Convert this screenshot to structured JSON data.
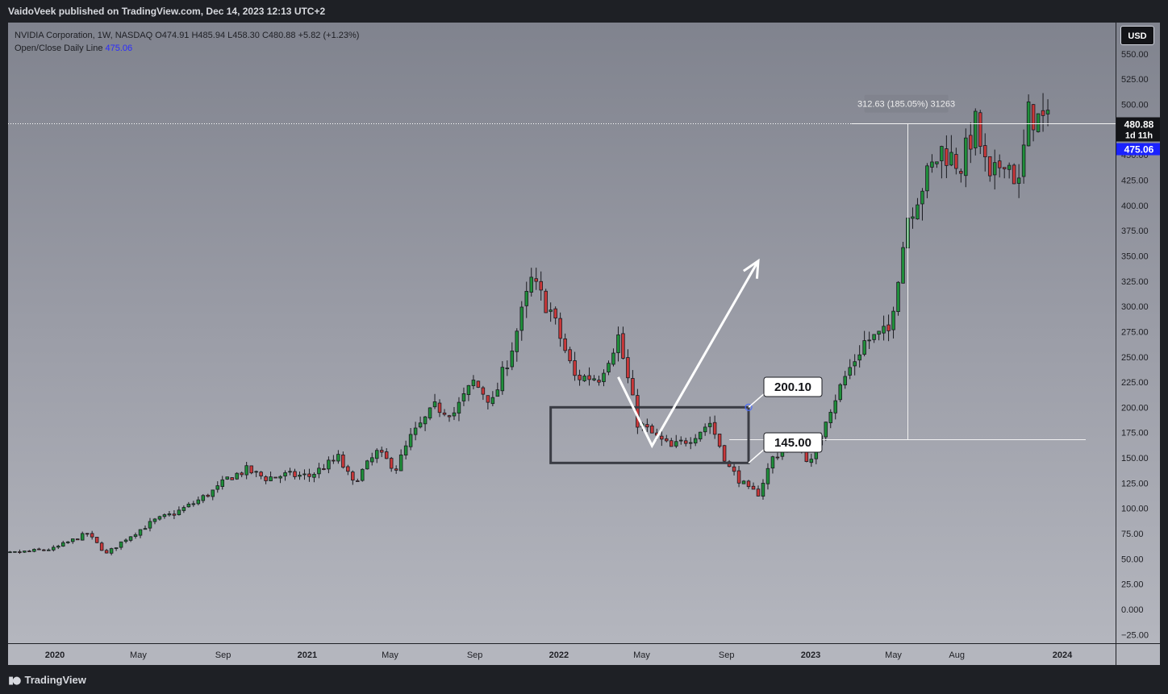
{
  "publisher_line": "VaidoVeek published on TradingView.com, Dec 14, 2023 12:13 UTC+2",
  "legend": {
    "symbol_line": "NVIDIA Corporation, 1W, NASDAQ  O474.91  H485.94  L458.30  C480.88  +5.82 (+1.23%)",
    "indicator_label": "Open/Close Daily Line",
    "indicator_value": "475.06"
  },
  "currency_button": "USD",
  "footer_brand": "TradingView",
  "colors": {
    "up": "#1f8f3a",
    "down": "#c9383a",
    "box": "#3a3c44",
    "label_bg": "#ffffff",
    "indicator": "#1a22ff"
  },
  "chart_data": {
    "type": "candlestick",
    "title": "",
    "ylim": [
      -30,
      570
    ],
    "y_ticks": [
      "550.00",
      "525.00",
      "500.00",
      "475.00",
      "450.00",
      "425.00",
      "400.00",
      "375.00",
      "350.00",
      "325.00",
      "300.00",
      "275.00",
      "250.00",
      "225.00",
      "200.00",
      "175.00",
      "150.00",
      "125.00",
      "100.00",
      "75.00",
      "50.00",
      "25.00",
      "0.000",
      "−25.00"
    ],
    "x_ticks": [
      {
        "label": "2020",
        "date": "2020-01-01",
        "bold": true
      },
      {
        "label": "May",
        "date": "2020-05-01",
        "bold": false
      },
      {
        "label": "Sep",
        "date": "2020-09-01",
        "bold": false
      },
      {
        "label": "2021",
        "date": "2021-01-01",
        "bold": true
      },
      {
        "label": "May",
        "date": "2021-05-01",
        "bold": false
      },
      {
        "label": "Sep",
        "date": "2021-09-01",
        "bold": false
      },
      {
        "label": "2022",
        "date": "2022-01-01",
        "bold": true
      },
      {
        "label": "May",
        "date": "2022-05-01",
        "bold": false
      },
      {
        "label": "Sep",
        "date": "2022-09-01",
        "bold": false
      },
      {
        "label": "2023",
        "date": "2023-01-01",
        "bold": true
      },
      {
        "label": "May",
        "date": "2023-05-01",
        "bold": false
      },
      {
        "label": "Aug",
        "date": "2023-08-01",
        "bold": false
      },
      {
        "label": "2024",
        "date": "2024-01-01",
        "bold": true
      }
    ],
    "price_series_approx": [
      [
        "2019-09-09",
        52
      ],
      [
        "2019-11-04",
        56
      ],
      [
        "2019-12-30",
        60
      ],
      [
        "2020-02-17",
        75
      ],
      [
        "2020-03-16",
        55
      ],
      [
        "2020-04-13",
        70
      ],
      [
        "2020-05-25",
        88
      ],
      [
        "2020-06-22",
        95
      ],
      [
        "2020-07-20",
        105
      ],
      [
        "2020-08-24",
        120
      ],
      [
        "2020-09-08",
        130
      ],
      [
        "2020-10-05",
        138
      ],
      [
        "2020-11-02",
        130
      ],
      [
        "2020-11-30",
        133
      ],
      [
        "2021-01-04",
        132
      ],
      [
        "2021-02-15",
        150
      ],
      [
        "2021-03-08",
        125
      ],
      [
        "2021-04-12",
        155
      ],
      [
        "2021-05-10",
        140
      ],
      [
        "2021-05-31",
        170
      ],
      [
        "2021-07-05",
        200
      ],
      [
        "2021-08-02",
        195
      ],
      [
        "2021-08-30",
        225
      ],
      [
        "2021-09-27",
        205
      ],
      [
        "2021-10-25",
        260
      ],
      [
        "2021-11-22",
        325
      ],
      [
        "2021-12-20",
        295
      ],
      [
        "2022-01-24",
        230
      ],
      [
        "2022-02-28",
        230
      ],
      [
        "2022-03-28",
        270
      ],
      [
        "2022-04-25",
        185
      ],
      [
        "2022-05-23",
        170
      ],
      [
        "2022-06-13",
        160
      ],
      [
        "2022-07-11",
        170
      ],
      [
        "2022-08-08",
        185
      ],
      [
        "2022-09-05",
        140
      ],
      [
        "2022-10-03",
        118
      ],
      [
        "2022-10-17",
        115
      ],
      [
        "2022-11-07",
        150
      ],
      [
        "2022-12-05",
        165
      ],
      [
        "2023-01-03",
        145
      ],
      [
        "2023-01-23",
        190
      ],
      [
        "2023-02-20",
        230
      ],
      [
        "2023-03-20",
        265
      ],
      [
        "2023-04-24",
        275
      ],
      [
        "2023-05-22",
        390
      ],
      [
        "2023-06-12",
        420
      ],
      [
        "2023-07-10",
        455
      ],
      [
        "2023-08-07",
        440
      ],
      [
        "2023-08-28",
        480
      ],
      [
        "2023-09-18",
        420
      ],
      [
        "2023-10-09",
        450
      ],
      [
        "2023-10-30",
        420
      ],
      [
        "2023-11-13",
        490
      ],
      [
        "2023-12-11",
        480.88
      ]
    ],
    "price_lines": [
      {
        "label": "480.88",
        "sub": "1d 11h",
        "value": 480.88
      },
      {
        "label": "475.06",
        "value": 475.06
      }
    ],
    "annotations": {
      "range_box": {
        "start": "2021-12-20",
        "end": "2022-10-03",
        "low": 145.0,
        "high": 200.1
      },
      "label_high": "200.10",
      "label_low": "145.00",
      "measure_text": "312.63 (185.05%) 31263"
    }
  }
}
